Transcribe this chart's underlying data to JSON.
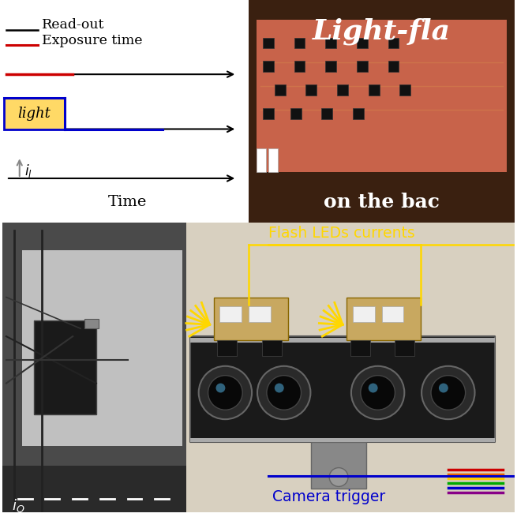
{
  "bg_color": "#ffffff",
  "flash_led_color": "#ffd700",
  "camera_trigger_color": "#0000cc",
  "light_box_fill": "#ffd966",
  "light_signal_color": "#0000cc",
  "red_line_color": "#cc0000",
  "readout_label": "Read-out",
  "exposure_label": "Exposure time",
  "light_label": "light",
  "time_label": "Time",
  "flash_led_label": "Flash LEDs currents",
  "camera_trigger_label": "Camera trigger",
  "top_right_label": "Light-fla",
  "top_right_sublabel": "on the bac"
}
